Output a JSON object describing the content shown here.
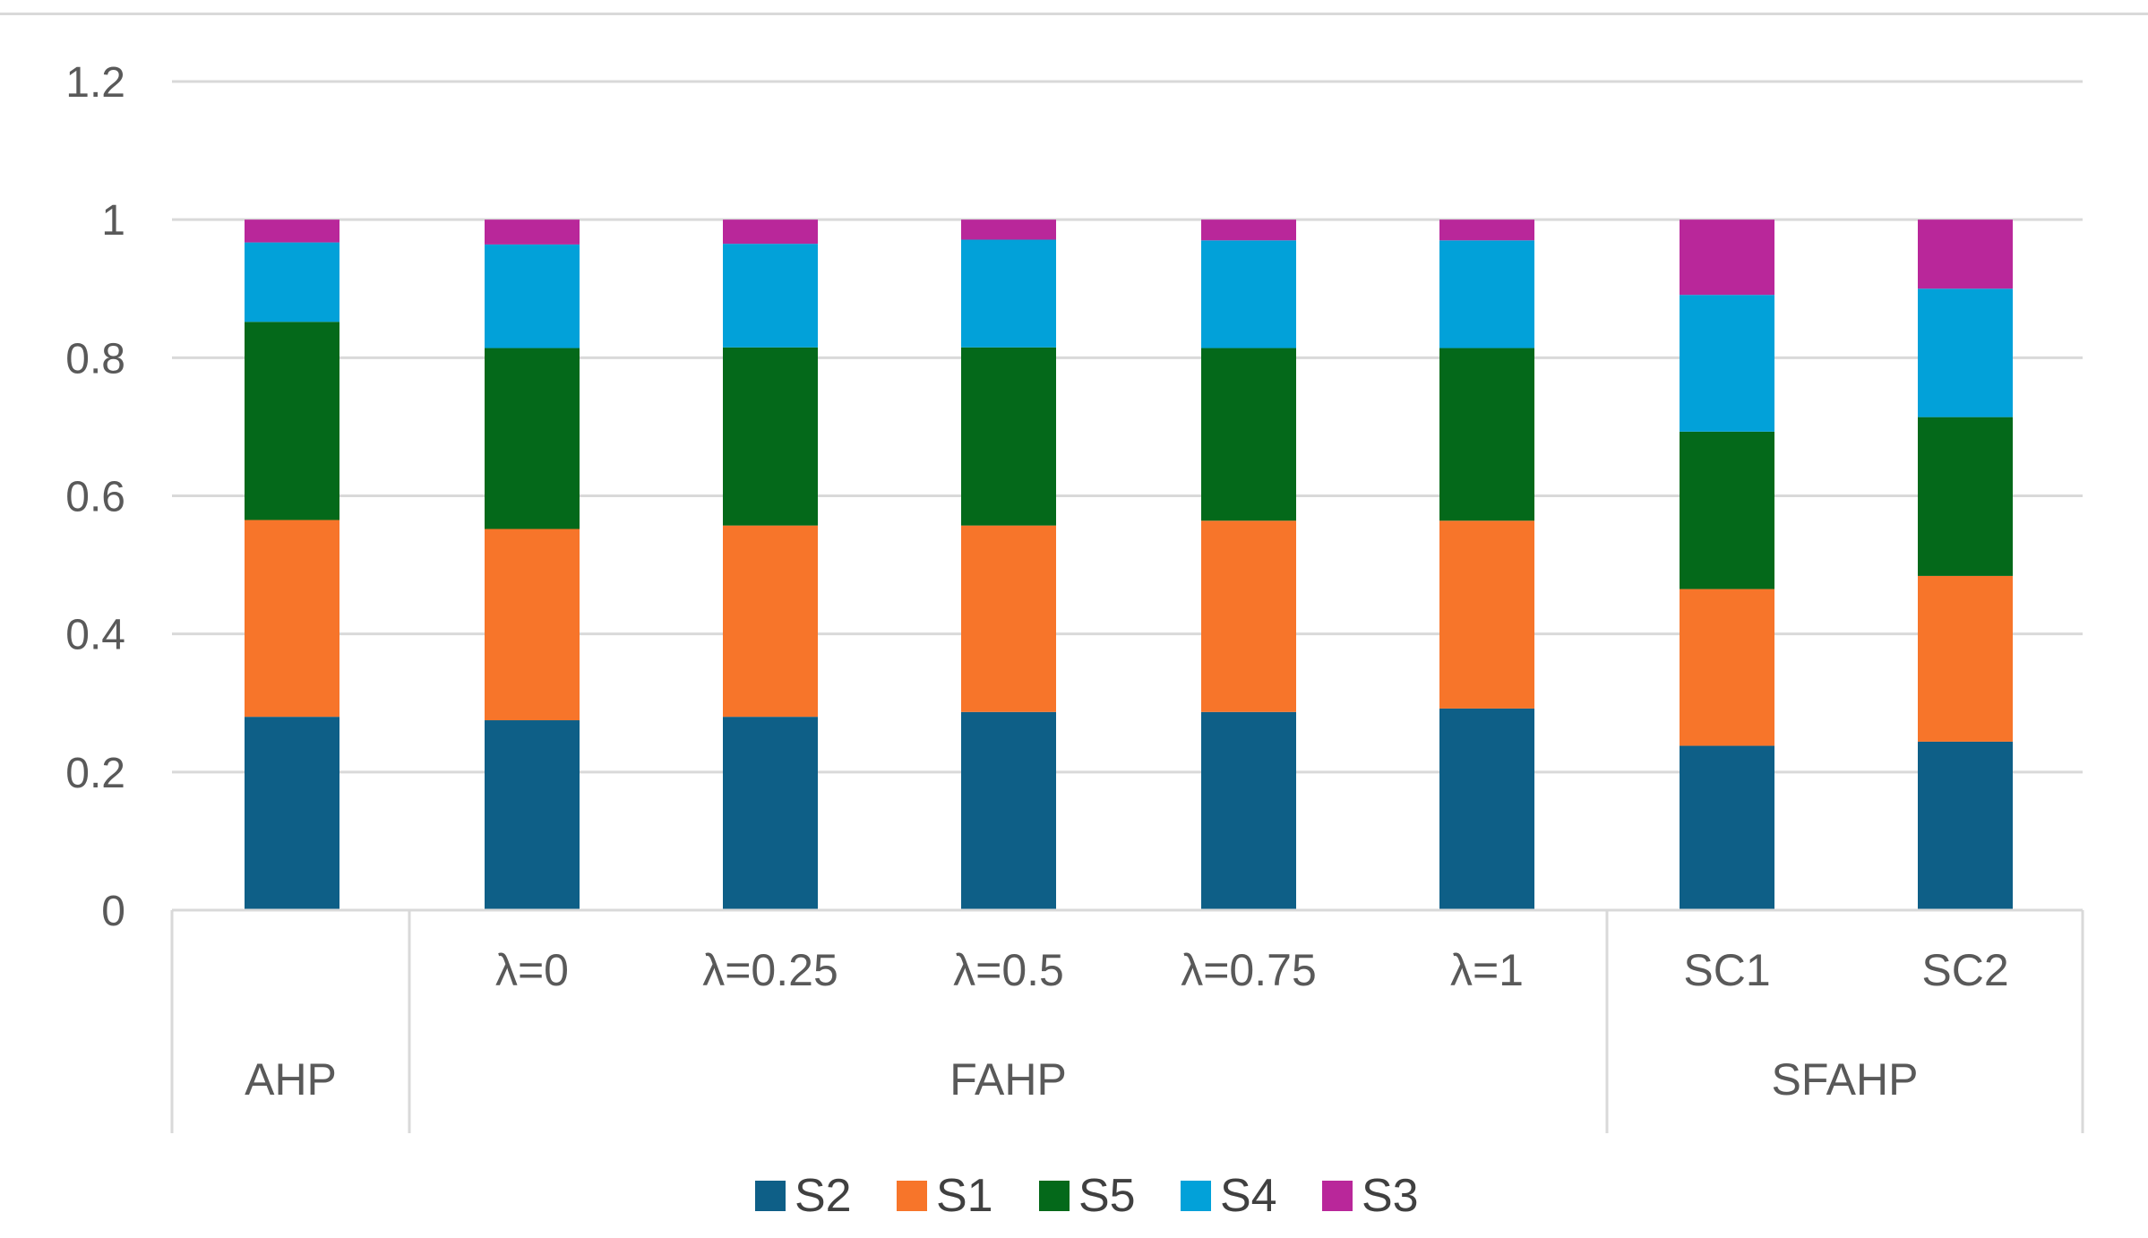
{
  "chart_data": {
    "type": "bar",
    "stacked": true,
    "title": "",
    "xlabel": "",
    "ylabel": "",
    "ylim": [
      0,
      1.2
    ],
    "yticks": [
      0,
      0.2,
      0.4,
      0.6,
      0.8,
      1,
      1.2
    ],
    "ytick_labels": [
      "0",
      "0.2",
      "0.4",
      "0.6",
      "0.8",
      "1",
      "1.2"
    ],
    "grid": true,
    "legend_position": "bottom",
    "categories": [
      "",
      "λ=0",
      "λ=0.25",
      "λ=0.5",
      "λ=0.75",
      "λ=1",
      "SC1",
      "SC2"
    ],
    "groups": [
      {
        "label": "AHP",
        "categories": [
          ""
        ]
      },
      {
        "label": "FAHP",
        "categories": [
          "λ=0",
          "λ=0.25",
          "λ=0.5",
          "λ=0.75",
          "λ=1"
        ]
      },
      {
        "label": "SFAHP",
        "categories": [
          "SC1",
          "SC2"
        ]
      }
    ],
    "series": [
      {
        "name": "S2",
        "color": "#0e5f87",
        "values": [
          0.28,
          0.275,
          0.28,
          0.287,
          0.287,
          0.292,
          0.238,
          0.244
        ]
      },
      {
        "name": "S1",
        "color": "#f7752a",
        "values": [
          0.285,
          0.277,
          0.277,
          0.27,
          0.277,
          0.272,
          0.227,
          0.24
        ]
      },
      {
        "name": "S5",
        "color": "#04691a",
        "values": [
          0.287,
          0.262,
          0.258,
          0.258,
          0.25,
          0.25,
          0.228,
          0.23
        ]
      },
      {
        "name": "S4",
        "color": "#02a1d9",
        "values": [
          0.115,
          0.15,
          0.15,
          0.156,
          0.156,
          0.156,
          0.198,
          0.186
        ]
      },
      {
        "name": "S3",
        "color": "#b9279a",
        "values": [
          0.033,
          0.036,
          0.035,
          0.029,
          0.03,
          0.03,
          0.109,
          0.1
        ]
      }
    ]
  }
}
